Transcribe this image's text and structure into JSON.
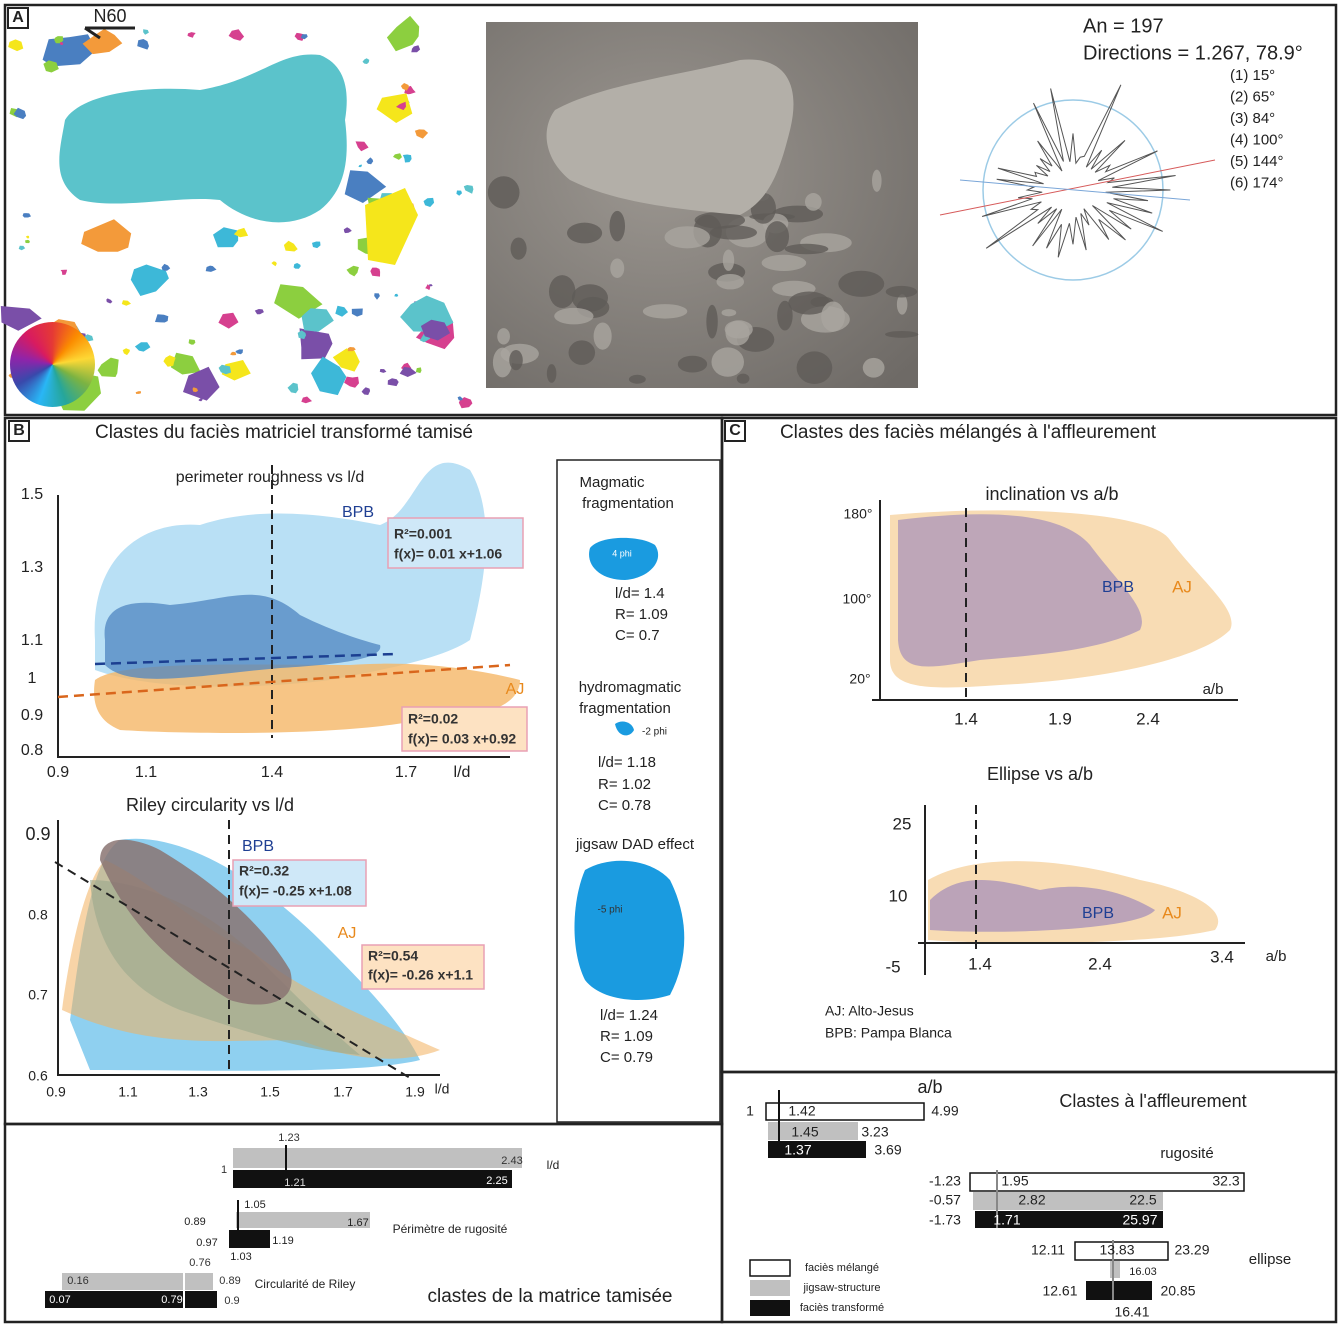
{
  "panel_a": {
    "label": "A",
    "north": "N60",
    "an": "An = 197",
    "directions": "Directions = 1.267, 78.9°",
    "modes": [
      "(1) 15°",
      "(2) 65°",
      "(3) 84°",
      "(4) 100°",
      "(5) 144°",
      "(6) 174°"
    ]
  },
  "panel_b": {
    "label": "B",
    "title": "Clastes du faciès matriciel transformé tamisé",
    "roughness": {
      "title": "perimeter roughness vs l/d",
      "yticks": [
        "1.5",
        "1.3",
        "1.1",
        "1",
        "0.9",
        "0.8"
      ],
      "xticks": [
        "0.9",
        "1.1",
        "1.4",
        "1.7"
      ],
      "xlabel": "l/d",
      "bpb": "BPB",
      "aj": "AJ",
      "bpb_fit": [
        "R²=0.001",
        "f(x)= 0.01 x+1.06"
      ],
      "aj_fit": [
        "R²=0.02",
        "f(x)= 0.03 x+0.92"
      ]
    },
    "circularity": {
      "title": "Riley circularity vs l/d",
      "yticks": [
        "0.9",
        "0.8",
        "0.7",
        "0.6"
      ],
      "xticks": [
        "0.9",
        "1.1",
        "1.3",
        "1.5",
        "1.7",
        "1.9"
      ],
      "xlabel": "l/d",
      "bpb": "BPB",
      "aj": "AJ",
      "bpb_fit": [
        "R²=0.32",
        "f(x)= -0.25 x+1.08"
      ],
      "aj_fit": [
        "R²=0.54",
        "f(x)= -0.26 x+1.1"
      ]
    },
    "legend": [
      {
        "title": [
          "Magmatic",
          "fragmentation"
        ],
        "phi": "4 phi",
        "stats": [
          "l/d= 1.4",
          "R= 1.09",
          "C= 0.7"
        ]
      },
      {
        "title": [
          "hydromagmatic",
          "fragmentation"
        ],
        "phi": "-2 phi",
        "stats": [
          "l/d= 1.18",
          "R= 1.02",
          "C= 0.78"
        ]
      },
      {
        "title": [
          "jigsaw DAD effect"
        ],
        "phi": "-5 phi",
        "stats": [
          "l/d= 1.24",
          "R= 1.09",
          "C= 0.79"
        ]
      }
    ],
    "ranges": {
      "title": "clastes de la matrice tamisée",
      "rows": [
        {
          "name": "l/d",
          "labels": [
            "1.23",
            "1",
            "2.43",
            "1.21",
            "2.25"
          ]
        },
        {
          "name": "Périmètre de rugosité",
          "labels": [
            "1.05",
            "0.89",
            "1.67",
            "0.97",
            "1.19",
            "1.03"
          ]
        },
        {
          "name": "Circularité de Riley",
          "labels": [
            "0.76",
            "0.16",
            "0.89",
            "0.07",
            "0.79",
            "0.9"
          ]
        }
      ]
    }
  },
  "panel_c": {
    "label": "C",
    "title": "Clastes des faciès mélangés à l'affleurement",
    "inclination": {
      "title": "inclination vs a/b",
      "yticks": [
        "180°",
        "100°",
        "20°"
      ],
      "xticks": [
        "1.4",
        "1.9",
        "2.4"
      ],
      "xlabel": "a/b",
      "bpb": "BPB",
      "aj": "AJ"
    },
    "ellipse": {
      "title": "Ellipse vs a/b",
      "yticks": [
        "25",
        "10",
        "-5"
      ],
      "xticks": [
        "1.4",
        "2.4",
        "3.4"
      ],
      "xlabel": "a/b",
      "bpb": "BPB",
      "aj": "AJ"
    },
    "abbreviations": [
      "AJ: Alto-Jesus",
      "BPB: Pampa Blanca"
    ],
    "ranges": {
      "title": "Clastes à l'affleurement",
      "rows": [
        {
          "name": "a/b",
          "labels": [
            "1",
            "1.42",
            "4.99",
            "1.45",
            "3.23",
            "1.37",
            "3.69"
          ]
        },
        {
          "name": "rugosité",
          "labels": [
            "-1.23",
            "1.95",
            "32.3",
            "-0.57",
            "2.82",
            "22.5",
            "-1.73",
            "1.71",
            "25.97"
          ]
        },
        {
          "name": "ellipse",
          "labels": [
            "12.11",
            "13.83",
            "23.29",
            "16.03",
            "12.61",
            "20.85",
            "16.41"
          ]
        }
      ],
      "legend": [
        "faciès mélangé",
        "jigsaw-structure",
        "faciès transformé"
      ]
    }
  }
}
